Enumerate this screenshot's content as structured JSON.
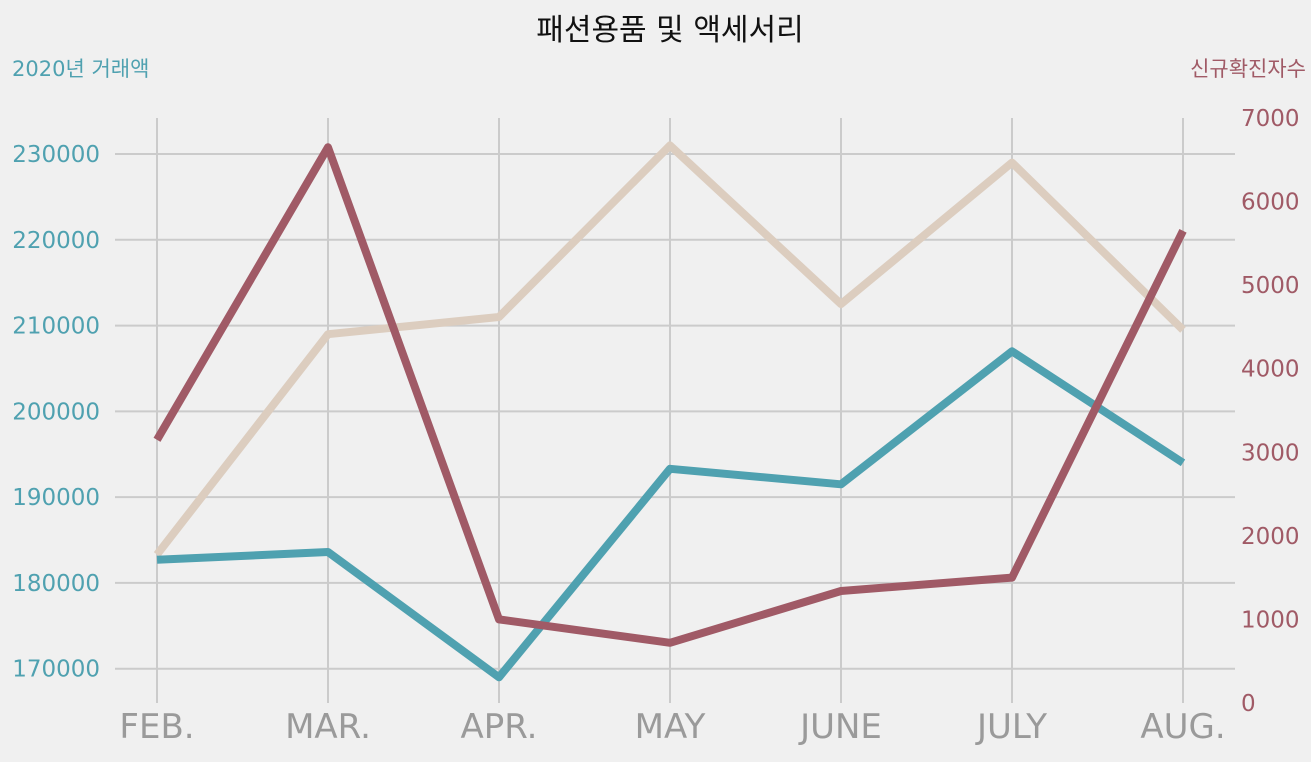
{
  "chart_data": {
    "type": "line",
    "title": "패션용품 및 액세서리",
    "categories": [
      "FEB.",
      "MAR.",
      "APR.",
      "MAY",
      "JUNE",
      "JULY",
      "AUG."
    ],
    "left_axis": {
      "label": "2020년 거래액",
      "range": [
        166000,
        234200
      ],
      "ticks": [
        170000,
        180000,
        190000,
        200000,
        210000,
        220000,
        230000
      ],
      "color": "#4fa1b0"
    },
    "right_axis": {
      "label": "신규확진자수",
      "range": [
        0,
        7000
      ],
      "ticks": [
        0,
        1000,
        2000,
        3000,
        4000,
        5000,
        6000,
        7000
      ],
      "color": "#a05a66"
    },
    "grid": true,
    "series": [
      {
        "axis": "left",
        "color": "#dccdbf",
        "values": [
          183300,
          209000,
          211000,
          231000,
          212500,
          229000,
          209500
        ]
      },
      {
        "axis": "left",
        "color": "#4fa1b0",
        "values": [
          182700,
          183600,
          169000,
          193300,
          191500,
          207000,
          194000
        ]
      },
      {
        "axis": "right",
        "color": "#a05a66",
        "values": [
          3150,
          6650,
          1000,
          720,
          1340,
          1500,
          5650
        ]
      }
    ]
  }
}
